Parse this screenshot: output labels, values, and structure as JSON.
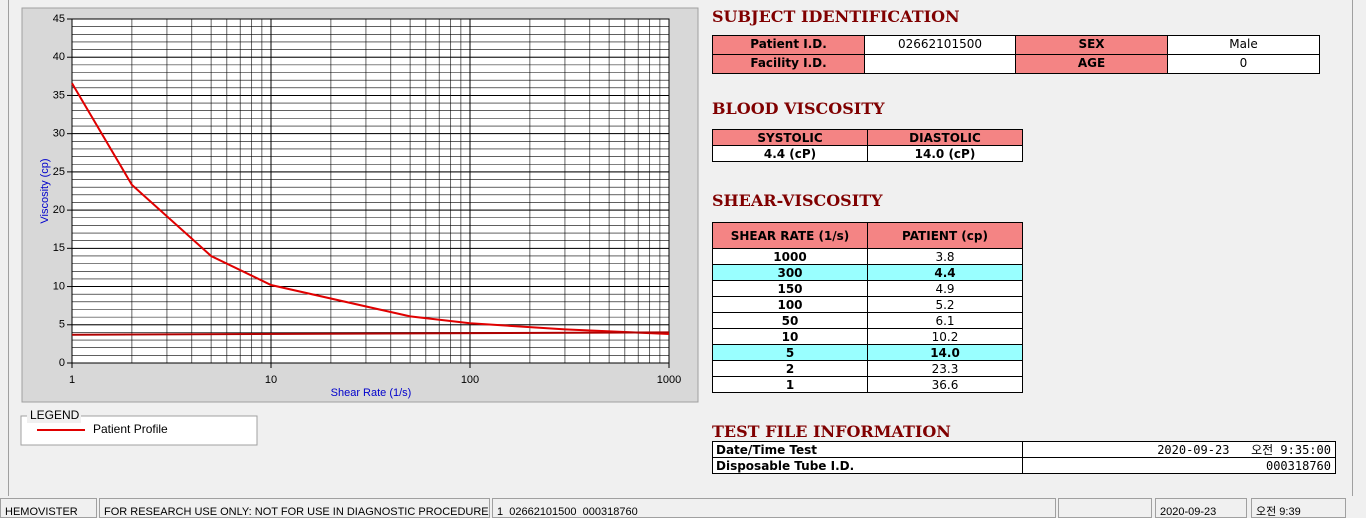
{
  "chart": {
    "type": "line",
    "x_label": "Shear Rate (1/s)",
    "y_label": "Viscosity (cp)",
    "xscale": "log",
    "xlim": [
      1,
      1000
    ],
    "xticks": [
      1,
      10,
      100,
      1000
    ],
    "ylim": [
      0,
      45
    ],
    "yticks": [
      0,
      5,
      10,
      15,
      20,
      25,
      30,
      35,
      40,
      45
    ],
    "grid": true,
    "minor_grid": true,
    "legend_title": "LEGEND",
    "series": [
      {
        "name": "Patient Profile",
        "color": "#e00000",
        "x": [
          1,
          2,
          5,
          10,
          50,
          100,
          150,
          300,
          1000
        ],
        "values": [
          36.6,
          23.3,
          14.0,
          10.2,
          6.1,
          5.2,
          4.9,
          4.4,
          3.8
        ]
      },
      {
        "color": "#b00000",
        "x": [
          1,
          1000
        ],
        "values": [
          3.7,
          4.0
        ]
      }
    ]
  },
  "subject_identification": {
    "title": "SUBJECT IDENTIFICATION",
    "fields": [
      {
        "label": "Patient I.D.",
        "value": "02662101500"
      },
      {
        "label": "SEX",
        "value": "Male"
      },
      {
        "label": "Facility I.D."
      },
      {
        "label": "AGE",
        "value": "0"
      }
    ]
  },
  "blood_viscosity": {
    "title": "BLOOD VISCOSITY",
    "headers": [
      "SYSTOLIC",
      "DIASTOLIC"
    ],
    "values": [
      "4.4 (cP)",
      "14.0 (cP)"
    ]
  },
  "shear_viscosity": {
    "title": "SHEAR-VISCOSITY",
    "headers": [
      "SHEAR RATE (1/s)",
      "PATIENT (cp)"
    ],
    "rows": [
      {
        "rate": "1000",
        "patient": "3.8"
      },
      {
        "rate": "300",
        "patient": "4.4",
        "highlight": true
      },
      {
        "rate": "150",
        "patient": "4.9"
      },
      {
        "rate": "100",
        "patient": "5.2"
      },
      {
        "rate": "50",
        "patient": "6.1"
      },
      {
        "rate": "10",
        "patient": "10.2"
      },
      {
        "rate": "5",
        "patient": "14.0",
        "highlight": true
      },
      {
        "rate": "2",
        "patient": "23.3"
      },
      {
        "rate": "1",
        "patient": "36.6"
      }
    ]
  },
  "test_file": {
    "title": "TEST FILE INFORMATION",
    "rows": [
      [
        "Date/Time Test",
        "2020-09-23   오전 9:35:00"
      ],
      [
        "Disposable Tube I.D.",
        "000318760"
      ]
    ]
  },
  "status_bar": [
    "HEMOVISTER",
    "FOR RESEARCH USE ONLY: NOT FOR USE IN DIAGNOSTIC PROCEDURES",
    "1  02662101500  000318760",
    "2020-09-23",
    "오전 9:39"
  ]
}
